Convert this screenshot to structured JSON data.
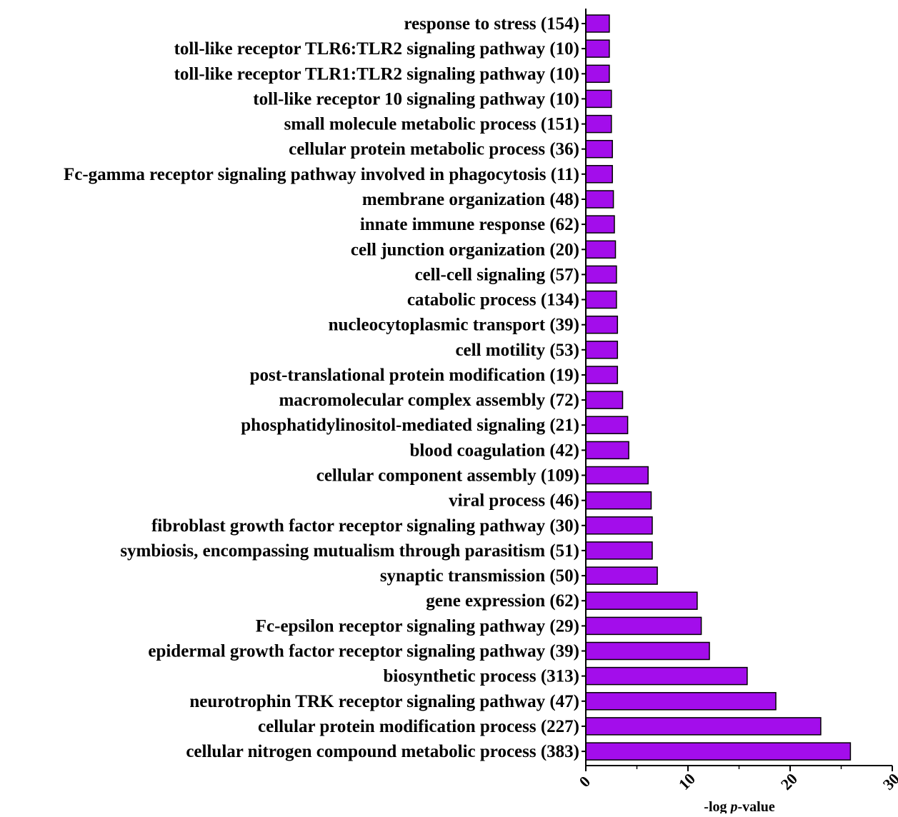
{
  "chart_data": {
    "type": "bar",
    "orientation": "horizontal",
    "title": "",
    "xlabel": "-log p-value",
    "xlabel_parts": [
      "-log ",
      "p",
      "-value"
    ],
    "ylabel": "",
    "xlim": [
      0,
      30
    ],
    "xticks": [
      "0",
      "10",
      "20",
      "30"
    ],
    "grid": false,
    "legend": "none",
    "bar_color": "#A30DEB",
    "bar_edge_color": "#000000",
    "categories": [
      "response to stress (154)",
      "toll-like receptor TLR6:TLR2 signaling pathway (10)",
      "toll-like receptor TLR1:TLR2 signaling pathway (10)",
      "toll-like receptor 10 signaling pathway (10)",
      "small molecule metabolic process (151)",
      "cellular protein metabolic process (36)",
      "Fc-gamma receptor signaling pathway involved in phagocytosis (11)",
      "membrane organization (48)",
      "innate immune response (62)",
      "cell junction organization (20)",
      "cell-cell signaling (57)",
      "catabolic process (134)",
      "nucleocytoplasmic transport (39)",
      "cell motility (53)",
      "post-translational protein modification (19)",
      "macromolecular complex assembly (72)",
      "phosphatidylinositol-mediated signaling (21)",
      "blood coagulation (42)",
      "cellular component assembly (109)",
      "viral process (46)",
      "fibroblast growth factor receptor signaling pathway (30)",
      "symbiosis, encompassing mutualism through parasitism (51)",
      "synaptic transmission (50)",
      "gene expression (62)",
      "Fc-epsilon receptor signaling pathway (29)",
      "epidermal growth factor receptor signaling pathway (39)",
      "biosynthetic process (313)",
      "neurotrophin TRK receptor signaling pathway (47)",
      "cellular protein modification process (227)",
      "cellular nitrogen compound metabolic process (383)"
    ],
    "values": [
      2.3,
      2.3,
      2.3,
      2.5,
      2.5,
      2.6,
      2.6,
      2.7,
      2.8,
      2.9,
      3.0,
      3.0,
      3.1,
      3.1,
      3.1,
      3.6,
      4.1,
      4.2,
      6.1,
      6.4,
      6.5,
      6.5,
      7.0,
      10.9,
      11.3,
      12.1,
      15.8,
      18.6,
      23.0,
      25.9
    ]
  }
}
